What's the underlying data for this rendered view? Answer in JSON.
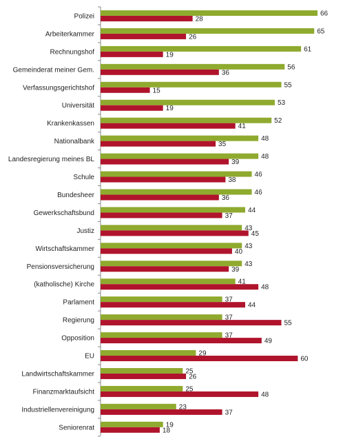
{
  "chart_data": {
    "type": "bar",
    "orientation": "horizontal",
    "grid": false,
    "legend": "none",
    "categories": [
      "Polizei",
      "Arbeiterkammer",
      "Rechnungshof",
      "Gemeinderat meiner Gem.",
      "Verfassungsgerichtshof",
      "Universität",
      "Krankenkassen",
      "Nationalbank",
      "Landesregierung meines BL",
      "Schule",
      "Bundesheer",
      "Gewerkschaftsbund",
      "Justiz",
      "Wirtschaftskammer",
      "Pensionsversicherung",
      "(katholische) Kirche",
      "Parlament",
      "Regierung",
      "Opposition",
      "EU",
      "Landwirtschaftskammer",
      "Finanzmarktaufsicht",
      "Industriellenvereinigung",
      "Seniorenrat"
    ],
    "series": [
      {
        "color": "#8faa2e",
        "values": [
          66,
          65,
          61,
          56,
          55,
          53,
          52,
          48,
          48,
          46,
          46,
          44,
          43,
          43,
          43,
          41,
          37,
          37,
          37,
          29,
          25,
          25,
          23,
          19
        ]
      },
      {
        "color": "#b0142c",
        "values": [
          28,
          26,
          19,
          36,
          15,
          19,
          41,
          35,
          39,
          38,
          36,
          37,
          45,
          40,
          39,
          48,
          44,
          55,
          49,
          60,
          26,
          48,
          37,
          18
        ]
      }
    ],
    "xlim": [
      0,
      66
    ]
  }
}
